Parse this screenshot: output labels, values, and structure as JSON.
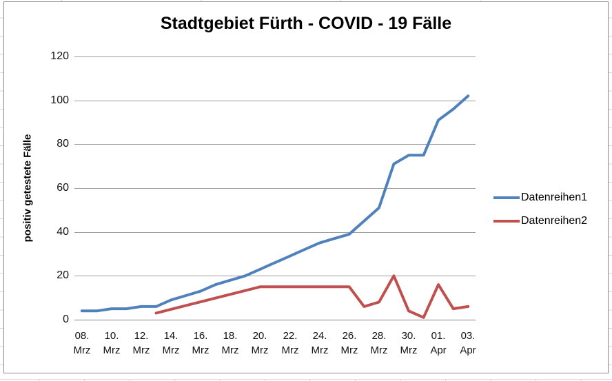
{
  "chart_data": {
    "type": "line",
    "title": "Stadtgebiet Fürth - COVID - 19 Fälle",
    "ylabel": "positiv getestete Fälle",
    "xlabel": "",
    "ylim": [
      0,
      120
    ],
    "yticks": [
      0,
      20,
      40,
      60,
      80,
      100,
      120
    ],
    "n_points": 27,
    "x_tick_every": 2,
    "x_tick_labels": [
      [
        "08.",
        "Mrz"
      ],
      [
        "10.",
        "Mrz"
      ],
      [
        "12.",
        "Mrz"
      ],
      [
        "14.",
        "Mrz"
      ],
      [
        "16.",
        "Mrz"
      ],
      [
        "18.",
        "Mrz"
      ],
      [
        "20.",
        "Mrz"
      ],
      [
        "22.",
        "Mrz"
      ],
      [
        "24.",
        "Mrz"
      ],
      [
        "26.",
        "Mrz"
      ],
      [
        "28.",
        "Mrz"
      ],
      [
        "30.",
        "Mrz"
      ],
      [
        "01.",
        "Apr"
      ],
      [
        "03.",
        "Apr"
      ]
    ],
    "grid": true,
    "legend_position": "right",
    "series": [
      {
        "name": "Datenreihen1",
        "color": "#4F81BD",
        "values": [
          4,
          4,
          5,
          5,
          6,
          6,
          9,
          11,
          13,
          16,
          18,
          20,
          23,
          26,
          29,
          32,
          35,
          37,
          39,
          45,
          51,
          71,
          75,
          75,
          91,
          96,
          102
        ]
      },
      {
        "name": "Datenreihen2",
        "color": "#C0504D",
        "values": [
          null,
          null,
          null,
          null,
          null,
          3,
          null,
          null,
          null,
          null,
          null,
          null,
          15,
          15,
          15,
          15,
          15,
          15,
          15,
          6,
          8,
          20,
          4,
          1,
          16,
          5,
          6
        ]
      }
    ]
  }
}
